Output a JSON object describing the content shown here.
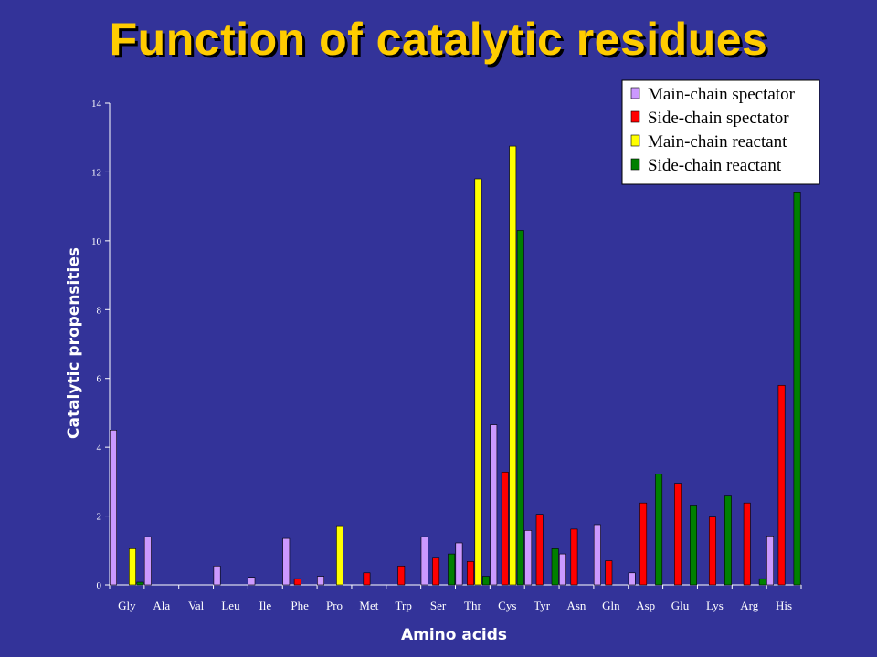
{
  "title": "Function of catalytic residues",
  "colors": {
    "background": "#333399",
    "title": "#ffcc00",
    "axis": "#ffffff"
  },
  "chart_data": {
    "type": "bar",
    "xlabel": "Amino acids",
    "ylabel": "Catalytic propensities",
    "ylim": [
      0,
      14
    ],
    "yticks": [
      0,
      2,
      4,
      6,
      8,
      10,
      12,
      14
    ],
    "grid": false,
    "legend_position": "top-right",
    "categories": [
      "Gly",
      "Ala",
      "Val",
      "Leu",
      "Ile",
      "Phe",
      "Pro",
      "Met",
      "Trp",
      "Ser",
      "Thr",
      "Cys",
      "Tyr",
      "Asn",
      "Gln",
      "Asp",
      "Glu",
      "Lys",
      "Arg",
      "His"
    ],
    "series": [
      {
        "name": "Main-chain spectator",
        "color": "#cc99ff",
        "values": [
          4.5,
          1.4,
          0,
          0.55,
          0.22,
          1.35,
          0.25,
          0,
          0,
          1.4,
          1.22,
          4.65,
          1.58,
          0.9,
          1.75,
          0.35,
          0,
          0,
          0,
          1.42
        ]
      },
      {
        "name": "Side-chain spectator",
        "color": "#ff0000",
        "values": [
          0,
          0,
          0,
          0,
          0,
          0.18,
          0,
          0.35,
          0.55,
          0.8,
          0.68,
          3.28,
          2.05,
          1.62,
          0.7,
          2.38,
          2.95,
          1.97,
          2.38,
          5.8
        ]
      },
      {
        "name": "Main-chain reactant",
        "color": "#ffff00",
        "values": [
          1.05,
          0,
          0,
          0,
          0,
          0,
          1.72,
          0,
          0,
          0,
          11.8,
          12.75,
          0,
          0,
          0,
          0,
          0,
          0,
          0,
          0
        ]
      },
      {
        "name": "Side-chain reactant",
        "color": "#008000",
        "values": [
          0.08,
          0,
          0,
          0,
          0,
          0,
          0,
          0,
          0,
          0.9,
          0.25,
          10.3,
          1.05,
          0,
          0,
          3.22,
          2.32,
          2.58,
          0.18,
          11.42
        ]
      }
    ]
  }
}
